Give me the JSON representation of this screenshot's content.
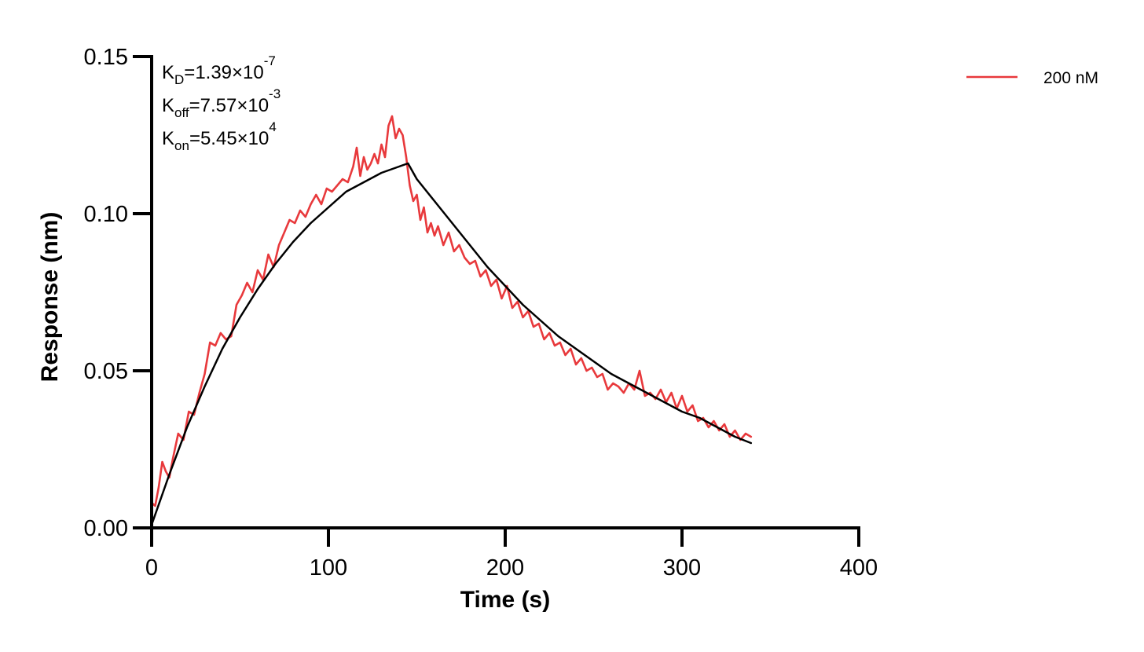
{
  "chart_data": {
    "type": "line",
    "title": "",
    "xlabel": "Time (s)",
    "ylabel": "Response (nm)",
    "xlim": [
      0,
      400
    ],
    "ylim": [
      0,
      0.15
    ],
    "xticks": [
      "0",
      "100",
      "200",
      "300",
      "400"
    ],
    "yticks": [
      "0.00",
      "0.05",
      "0.10",
      "0.15"
    ],
    "grid": false,
    "legend": {
      "position": "top-right"
    },
    "colors": {
      "measured": "#e8393c",
      "fit": "#000000"
    },
    "annotations": [
      {
        "base": "K",
        "sub": "D",
        "mid": "=1.39×10",
        "sup": "-7"
      },
      {
        "base": "K",
        "sub": "off",
        "mid": "=7.57×10",
        "sup": "-3"
      },
      {
        "base": "K",
        "sub": "on",
        "mid": "=5.45×10",
        "sup": "4"
      }
    ],
    "series": [
      {
        "name": "200 nM",
        "role": "measured",
        "x": [
          0,
          2,
          4,
          6,
          8,
          10,
          12,
          15,
          18,
          21,
          24,
          27,
          30,
          33,
          36,
          39,
          42,
          45,
          48,
          51,
          54,
          57,
          60,
          63,
          66,
          69,
          72,
          75,
          78,
          81,
          84,
          87,
          90,
          93,
          96,
          99,
          102,
          105,
          108,
          111,
          114,
          116,
          118,
          120,
          122,
          124,
          126,
          128,
          130,
          132,
          134,
          136,
          138,
          140,
          142,
          144,
          146,
          148,
          150,
          152,
          154,
          156,
          158,
          160,
          162,
          165,
          168,
          171,
          174,
          177,
          180,
          183,
          186,
          189,
          192,
          195,
          198,
          201,
          204,
          207,
          210,
          213,
          216,
          219,
          222,
          225,
          228,
          231,
          234,
          237,
          240,
          243,
          246,
          249,
          252,
          255,
          258,
          261,
          264,
          267,
          270,
          273,
          276,
          279,
          282,
          285,
          288,
          291,
          294,
          297,
          300,
          303,
          306,
          309,
          312,
          315,
          318,
          321,
          324,
          327,
          330,
          333,
          336,
          339
        ],
        "y": [
          0.008,
          0.007,
          0.013,
          0.021,
          0.018,
          0.016,
          0.022,
          0.03,
          0.028,
          0.037,
          0.036,
          0.043,
          0.049,
          0.059,
          0.058,
          0.062,
          0.06,
          0.061,
          0.071,
          0.074,
          0.078,
          0.075,
          0.082,
          0.079,
          0.087,
          0.083,
          0.09,
          0.094,
          0.098,
          0.097,
          0.101,
          0.099,
          0.103,
          0.106,
          0.103,
          0.108,
          0.107,
          0.109,
          0.111,
          0.11,
          0.115,
          0.121,
          0.112,
          0.118,
          0.114,
          0.116,
          0.119,
          0.116,
          0.122,
          0.118,
          0.128,
          0.131,
          0.124,
          0.127,
          0.125,
          0.118,
          0.109,
          0.104,
          0.106,
          0.098,
          0.102,
          0.094,
          0.097,
          0.093,
          0.096,
          0.09,
          0.094,
          0.088,
          0.09,
          0.086,
          0.084,
          0.085,
          0.08,
          0.082,
          0.077,
          0.079,
          0.073,
          0.077,
          0.07,
          0.072,
          0.067,
          0.069,
          0.064,
          0.065,
          0.06,
          0.062,
          0.058,
          0.059,
          0.055,
          0.057,
          0.052,
          0.054,
          0.05,
          0.051,
          0.048,
          0.049,
          0.044,
          0.046,
          0.045,
          0.043,
          0.046,
          0.044,
          0.05,
          0.042,
          0.043,
          0.041,
          0.044,
          0.04,
          0.043,
          0.038,
          0.042,
          0.037,
          0.039,
          0.034,
          0.035,
          0.032,
          0.034,
          0.031,
          0.033,
          0.029,
          0.031,
          0.028,
          0.03,
          0.029
        ]
      },
      {
        "role": "fit",
        "x": [
          0,
          10,
          20,
          30,
          40,
          50,
          60,
          70,
          80,
          90,
          100,
          110,
          120,
          130,
          140,
          145,
          150,
          160,
          170,
          180,
          190,
          200,
          210,
          220,
          230,
          240,
          250,
          260,
          270,
          280,
          290,
          300,
          310,
          320,
          330,
          339
        ],
        "y": [
          0.001,
          0.017,
          0.032,
          0.045,
          0.057,
          0.067,
          0.076,
          0.084,
          0.091,
          0.097,
          0.102,
          0.107,
          0.11,
          0.113,
          0.115,
          0.116,
          0.111,
          0.104,
          0.097,
          0.09,
          0.083,
          0.077,
          0.071,
          0.066,
          0.061,
          0.057,
          0.053,
          0.049,
          0.046,
          0.043,
          0.04,
          0.037,
          0.035,
          0.032,
          0.029,
          0.027
        ]
      }
    ]
  }
}
